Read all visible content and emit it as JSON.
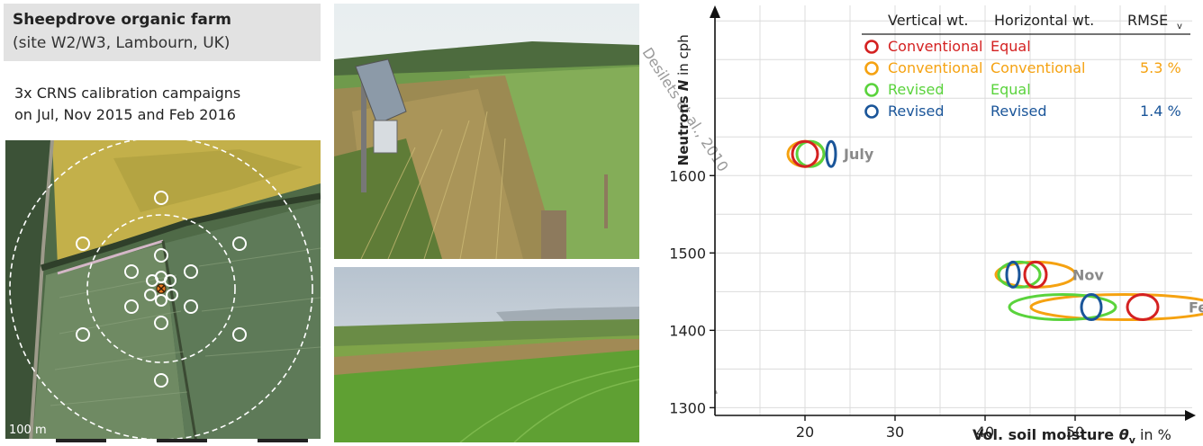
{
  "panel": {
    "site_name": "Sheepdrove organic farm",
    "site_location": "(site W2/W3, Lambourn, UK)",
    "description_line1": "3x CRNS calibration campaigns",
    "description_line2": "on Jul, Nov 2015 and Feb 2016",
    "scale_label": "100 m"
  },
  "chart_data": {
    "type": "scatter",
    "title": "",
    "ylabel_prefix": "Neutrons ",
    "ylabel_symbol": "N",
    "ylabel_suffix": " in cph",
    "xlabel_prefix": "Vol. soil moisture ",
    "xlabel_symbol": "θ",
    "xlabel_sub": "v",
    "xlabel_suffix": " in %",
    "xlim": [
      10,
      63
    ],
    "ylim": [
      1290,
      1820
    ],
    "x_ticks": [
      20,
      30,
      40,
      50
    ],
    "y_ticks": [
      1300,
      1400,
      1500,
      1600
    ],
    "grid": true,
    "colors": {
      "red": "#d42121",
      "orange": "#f5a211",
      "green": "#5ad33c",
      "blue": "#1a5599",
      "curve": "#9a9a9a",
      "label": "#8a8a8a"
    },
    "legend": {
      "placement": "top-right",
      "header_vertical": "Vertical wt.",
      "header_horizontal": "Horizontal wt.",
      "header_rmse": "RMSE",
      "header_rmse_sub": "v",
      "rows": [
        {
          "vertical": "Conventional",
          "horizontal": "Equal",
          "rmse": "",
          "color": "#d42121"
        },
        {
          "vertical": "Conventional",
          "horizontal": "Conventional",
          "rmse": "5.3 %",
          "color": "#f5a211"
        },
        {
          "vertical": "Revised",
          "horizontal": "Equal",
          "rmse": "",
          "color": "#5ad33c"
        },
        {
          "vertical": "Revised",
          "horizontal": "Revised",
          "rmse": "1.4 %",
          "color": "#1a5599"
        }
      ]
    },
    "curve_label": "Desilets et al., 2010",
    "campaigns": [
      {
        "name": "July",
        "n": 1628,
        "points": [
          {
            "method": "red",
            "cx": 20.0,
            "rx": 1.4,
            "ry": 14
          },
          {
            "method": "orange",
            "cx": 20.1,
            "rx": 2.0,
            "ry": 14
          },
          {
            "method": "green",
            "cx": 20.6,
            "rx": 1.5,
            "ry": 14
          },
          {
            "method": "blue",
            "cx": 22.9,
            "rx": 0.5,
            "ry": 14
          }
        ]
      },
      {
        "name": "Nov",
        "n": 1472,
        "points": [
          {
            "method": "red",
            "cx": 45.6,
            "rx": 1.2,
            "ry": 14
          },
          {
            "method": "orange",
            "cx": 45.6,
            "rx": 4.4,
            "ry": 14
          },
          {
            "method": "green",
            "cx": 43.8,
            "rx": 2.3,
            "ry": 14
          },
          {
            "method": "blue",
            "cx": 43.1,
            "rx": 0.7,
            "ry": 14
          }
        ]
      },
      {
        "name": "Feb",
        "n": 1430,
        "points": [
          {
            "method": "red",
            "cx": 57.5,
            "rx": 1.7,
            "ry": 14
          },
          {
            "method": "orange",
            "cx": 55.5,
            "rx": 10.4,
            "ry": 14
          },
          {
            "method": "green",
            "cx": 48.6,
            "rx": 5.9,
            "ry": 14
          },
          {
            "method": "blue",
            "cx": 51.8,
            "rx": 1.1,
            "ry": 14
          }
        ]
      }
    ]
  }
}
